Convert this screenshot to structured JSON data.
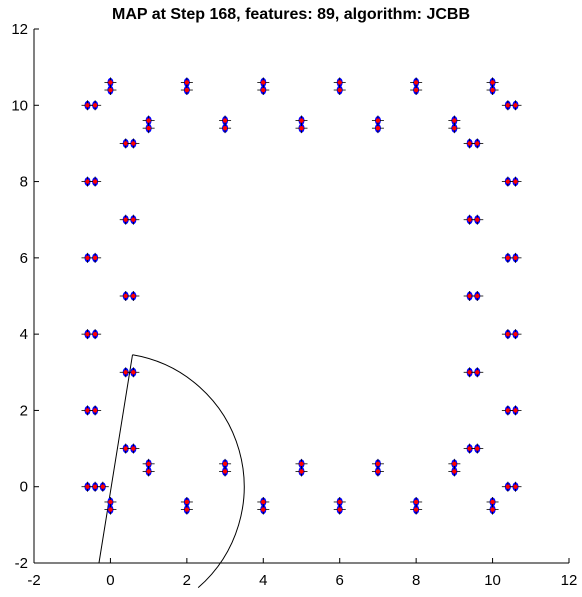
{
  "chart_data": {
    "type": "scatter",
    "title": "MAP at Step 168, features: 89, algorithm: JCBB",
    "xlabel": "",
    "ylabel": "",
    "xlim": [
      -2,
      12
    ],
    "ylim": [
      -2,
      12
    ],
    "xticks": [
      "-2",
      "0",
      "2",
      "4",
      "6",
      "8",
      "10",
      "12"
    ],
    "yticks": [
      "-2",
      "0",
      "2",
      "4",
      "6",
      "8",
      "10",
      "12"
    ],
    "grid": false,
    "legend": "none",
    "colors": {
      "estimate": "#ff0000",
      "landmark": "#0000ff",
      "sensor": "#000000"
    },
    "landmarks": [
      [
        -0.6,
        0
      ],
      [
        -0.4,
        0
      ],
      [
        -0.6,
        2
      ],
      [
        -0.4,
        2
      ],
      [
        -0.6,
        4
      ],
      [
        -0.4,
        4
      ],
      [
        -0.6,
        6
      ],
      [
        -0.4,
        6
      ],
      [
        -0.6,
        8
      ],
      [
        -0.4,
        8
      ],
      [
        -0.6,
        10
      ],
      [
        -0.4,
        10
      ],
      [
        0,
        10.6
      ],
      [
        0,
        10.4
      ],
      [
        0.4,
        9
      ],
      [
        0.6,
        9
      ],
      [
        0.4,
        7
      ],
      [
        0.6,
        7
      ],
      [
        0.4,
        5
      ],
      [
        0.6,
        5
      ],
      [
        0.4,
        3
      ],
      [
        0.6,
        3
      ],
      [
        0.4,
        1
      ],
      [
        0.6,
        1
      ],
      [
        0,
        -0.4
      ],
      [
        0,
        -0.6
      ],
      [
        1,
        9.6
      ],
      [
        1,
        9.4
      ],
      [
        1,
        0.6
      ],
      [
        1,
        0.4
      ],
      [
        2,
        10.6
      ],
      [
        2,
        10.4
      ],
      [
        2,
        -0.4
      ],
      [
        2,
        -0.6
      ],
      [
        3,
        9.6
      ],
      [
        3,
        9.4
      ],
      [
        3,
        0.6
      ],
      [
        3,
        0.4
      ],
      [
        4,
        10.6
      ],
      [
        4,
        10.4
      ],
      [
        4,
        -0.4
      ],
      [
        4,
        -0.6
      ],
      [
        5,
        9.6
      ],
      [
        5,
        9.4
      ],
      [
        5,
        0.6
      ],
      [
        5,
        0.4
      ],
      [
        6,
        10.6
      ],
      [
        6,
        10.4
      ],
      [
        6,
        -0.4
      ],
      [
        6,
        -0.6
      ],
      [
        7,
        9.6
      ],
      [
        7,
        9.4
      ],
      [
        7,
        0.6
      ],
      [
        7,
        0.4
      ],
      [
        8,
        10.6
      ],
      [
        8,
        10.4
      ],
      [
        8,
        -0.4
      ],
      [
        8,
        -0.6
      ],
      [
        9,
        9.6
      ],
      [
        9,
        9.4
      ],
      [
        9,
        0.6
      ],
      [
        9,
        0.4
      ],
      [
        9.4,
        9
      ],
      [
        9.6,
        9
      ],
      [
        9.4,
        7
      ],
      [
        9.6,
        7
      ],
      [
        9.4,
        5
      ],
      [
        9.6,
        5
      ],
      [
        9.4,
        3
      ],
      [
        9.6,
        3
      ],
      [
        9.4,
        1
      ],
      [
        9.6,
        1
      ],
      [
        10,
        10.6
      ],
      [
        10,
        10.4
      ],
      [
        10,
        -0.4
      ],
      [
        10,
        -0.6
      ],
      [
        10.4,
        10
      ],
      [
        10.6,
        10
      ],
      [
        10.4,
        8
      ],
      [
        10.6,
        8
      ],
      [
        10.4,
        6
      ],
      [
        10.6,
        6
      ],
      [
        10.4,
        4
      ],
      [
        10.6,
        4
      ],
      [
        10.4,
        2
      ],
      [
        10.6,
        2
      ],
      [
        10.4,
        0
      ],
      [
        10.6,
        0
      ],
      [
        -0.2,
        0
      ]
    ],
    "sensor_range": {
      "center": [
        0,
        0
      ],
      "radius": 3.5,
      "start_angle_deg": 80.5,
      "end_angle_deg": -49,
      "ray_end": [
        -0.3,
        -2
      ]
    }
  }
}
